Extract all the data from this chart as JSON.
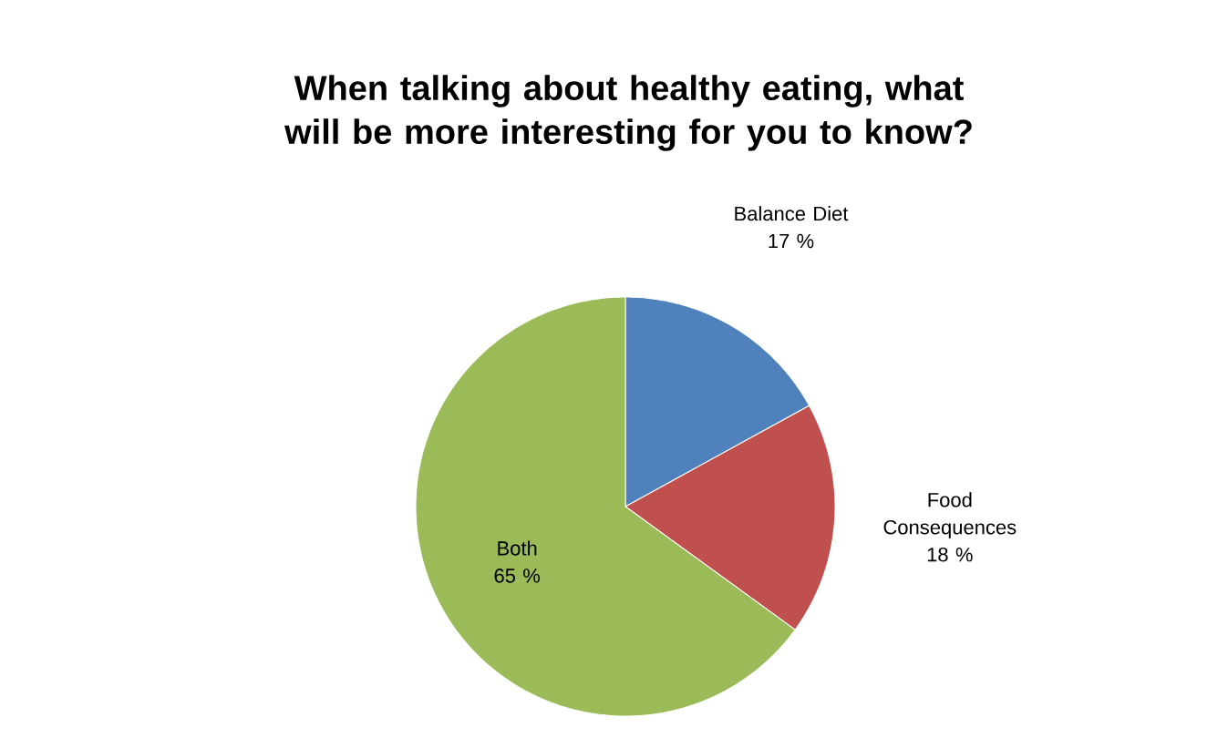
{
  "chart_data": {
    "type": "pie",
    "title": "When talking about healthy eating, what will be more interesting for you to know?",
    "categories": [
      "Balance Diet",
      "Food Consequences",
      "Both"
    ],
    "values": [
      17,
      18,
      65
    ],
    "value_labels": [
      "17 %",
      "18 %",
      "65 %"
    ],
    "colors": [
      "#4f81bd",
      "#c0504d",
      "#9bbb59"
    ]
  }
}
